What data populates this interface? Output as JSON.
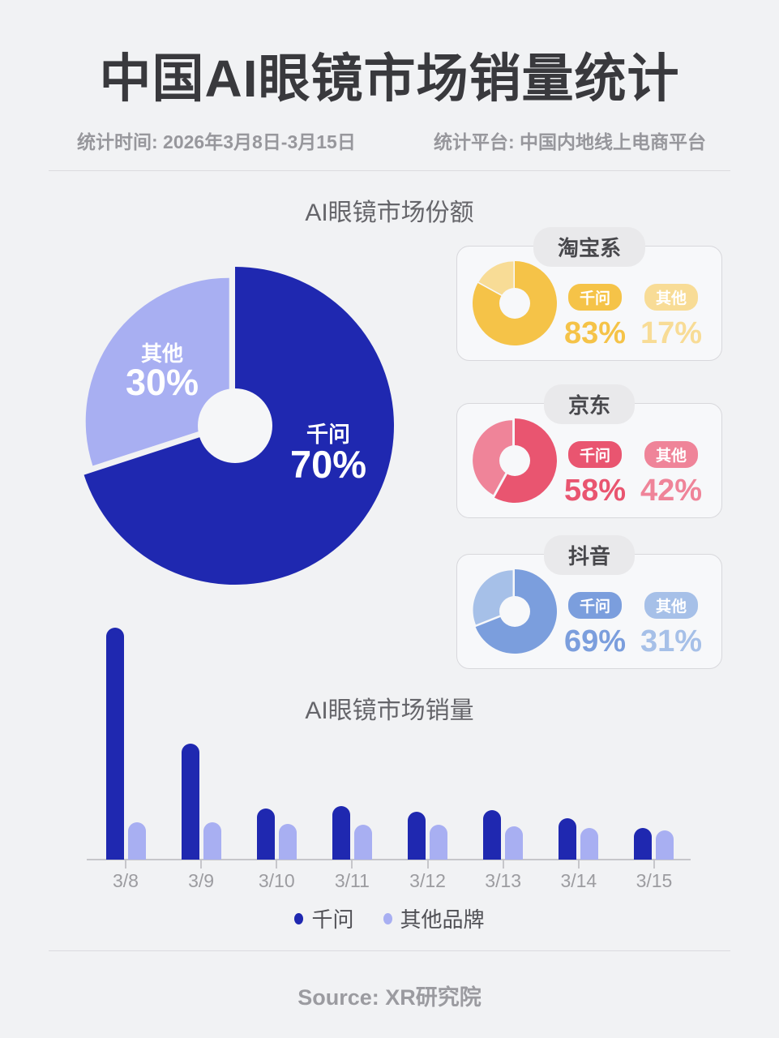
{
  "header": {
    "title": "中国AI眼镜市场销量统计",
    "stat_time": "统计时间: 2026年3月8日-3月15日",
    "stat_platform": "统计平台: 中国内地线上电商平台"
  },
  "share_section": {
    "title": "AI眼镜市场份额",
    "main_pie": {
      "main_label": "千问",
      "main_value": "70%",
      "other_label": "其他",
      "other_value": "30%"
    },
    "platform_cards": [
      {
        "name": "淘宝系",
        "main_label": "千问",
        "main_value": "83%",
        "other_label": "其他",
        "other_value": "17%",
        "colors": {
          "main": "#F5C348",
          "light": "#F8DC96"
        }
      },
      {
        "name": "京东",
        "main_label": "千问",
        "main_value": "58%",
        "other_label": "其他",
        "other_value": "42%",
        "colors": {
          "main": "#E95570",
          "light": "#EF8499"
        }
      },
      {
        "name": "抖音",
        "main_label": "千问",
        "main_value": "69%",
        "other_label": "其他",
        "other_value": "31%",
        "colors": {
          "main": "#7B9EDD",
          "light": "#A6C0E8"
        }
      }
    ]
  },
  "sales_section": {
    "title": "AI眼镜市场销量",
    "legend": [
      {
        "label": "千问",
        "color": "#1F28B0"
      },
      {
        "label": "其他品牌",
        "color": "#A8AFF2"
      }
    ]
  },
  "footer": {
    "source": "Source: XR研究院"
  },
  "colors": {
    "page_bg": "#F1F2F4",
    "qianwen_blue": "#1F28B0",
    "other_purple": "#A8AFF2",
    "taobao_yellow": "#F5C348",
    "jd_red": "#E95570",
    "douyin_blue": "#7B9EDD"
  },
  "chart_data": [
    {
      "id": "market-share-pie",
      "type": "pie",
      "title": "AI眼镜市场份额",
      "labels": [
        "千问",
        "其他"
      ],
      "values": [
        70,
        30
      ],
      "unit": "%",
      "colors": [
        "#1F28B0",
        "#A8AFF2"
      ],
      "legend_position": "inside-slices"
    },
    {
      "id": "taobao-donut",
      "type": "pie",
      "title": "淘宝系",
      "labels": [
        "千问",
        "其他"
      ],
      "values": [
        83,
        17
      ],
      "unit": "%",
      "colors": [
        "#F5C348",
        "#F8DC96"
      ]
    },
    {
      "id": "jd-donut",
      "type": "pie",
      "title": "京东",
      "labels": [
        "千问",
        "其他"
      ],
      "values": [
        58,
        42
      ],
      "unit": "%",
      "colors": [
        "#E95570",
        "#EF8499"
      ]
    },
    {
      "id": "douyin-donut",
      "type": "pie",
      "title": "抖音",
      "labels": [
        "千问",
        "其他"
      ],
      "values": [
        69,
        31
      ],
      "unit": "%",
      "colors": [
        "#7B9EDD",
        "#A6C0E8"
      ]
    },
    {
      "id": "sales-bar",
      "type": "bar",
      "title": "AI眼镜市场销量",
      "categories": [
        "3/8",
        "3/9",
        "3/10",
        "3/11",
        "3/12",
        "3/13",
        "3/14",
        "3/15"
      ],
      "series": [
        {
          "name": "千问",
          "color": "#1F28B0",
          "values": [
            100,
            50,
            22,
            23,
            20.5,
            21.5,
            18,
            13.5
          ]
        },
        {
          "name": "其他品牌",
          "color": "#A8AFF2",
          "values": [
            16,
            16,
            15.5,
            15,
            15,
            14.5,
            13.5,
            12.5
          ]
        }
      ],
      "xlabel": "",
      "ylabel": "",
      "units": "relative sales (no numeric axis shown)",
      "ylim": [
        0,
        100
      ],
      "grid": false,
      "legend_position": "bottom"
    }
  ]
}
